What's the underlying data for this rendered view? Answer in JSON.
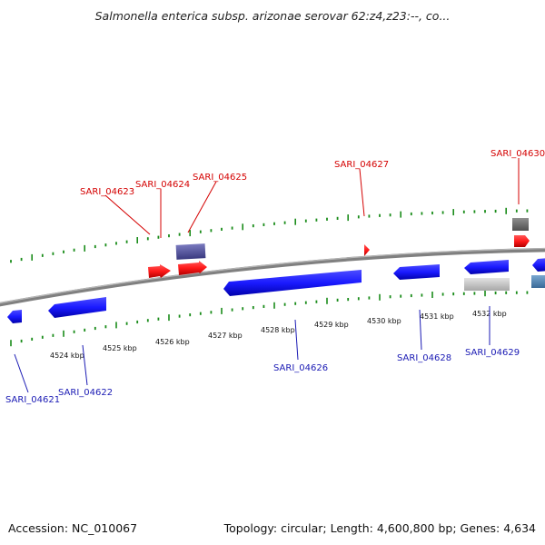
{
  "title": "Salmonella enterica subsp. arizonae serovar 62:z4,z23:--, co...",
  "footer": {
    "accession": "Accession: NC_010067",
    "summary": "Topology: circular; Length: 4,600,800 bp; Genes: 4,634"
  },
  "colors": {
    "forward_gene": "#ff1a1a",
    "reverse_gene": "#1a1aff",
    "forward_label": "#d40000",
    "reverse_label": "#1a1ab4",
    "backbone": "#808080",
    "ticks": "#1a8c1a"
  },
  "scale_labels": [
    "4524 kbp",
    "4525 kbp",
    "4526 kbp",
    "4527 kbp",
    "4528 kbp",
    "4529 kbp",
    "4530 kbp",
    "4531 kbp",
    "4532 kbp"
  ],
  "forward_genes": [
    "SARI_04623",
    "SARI_04624",
    "SARI_04625",
    "SARI_04627",
    "SARI_04630"
  ],
  "reverse_genes": [
    "SARI_04621",
    "SARI_04622",
    "SARI_04626",
    "SARI_04628",
    "SARI_04629"
  ]
}
